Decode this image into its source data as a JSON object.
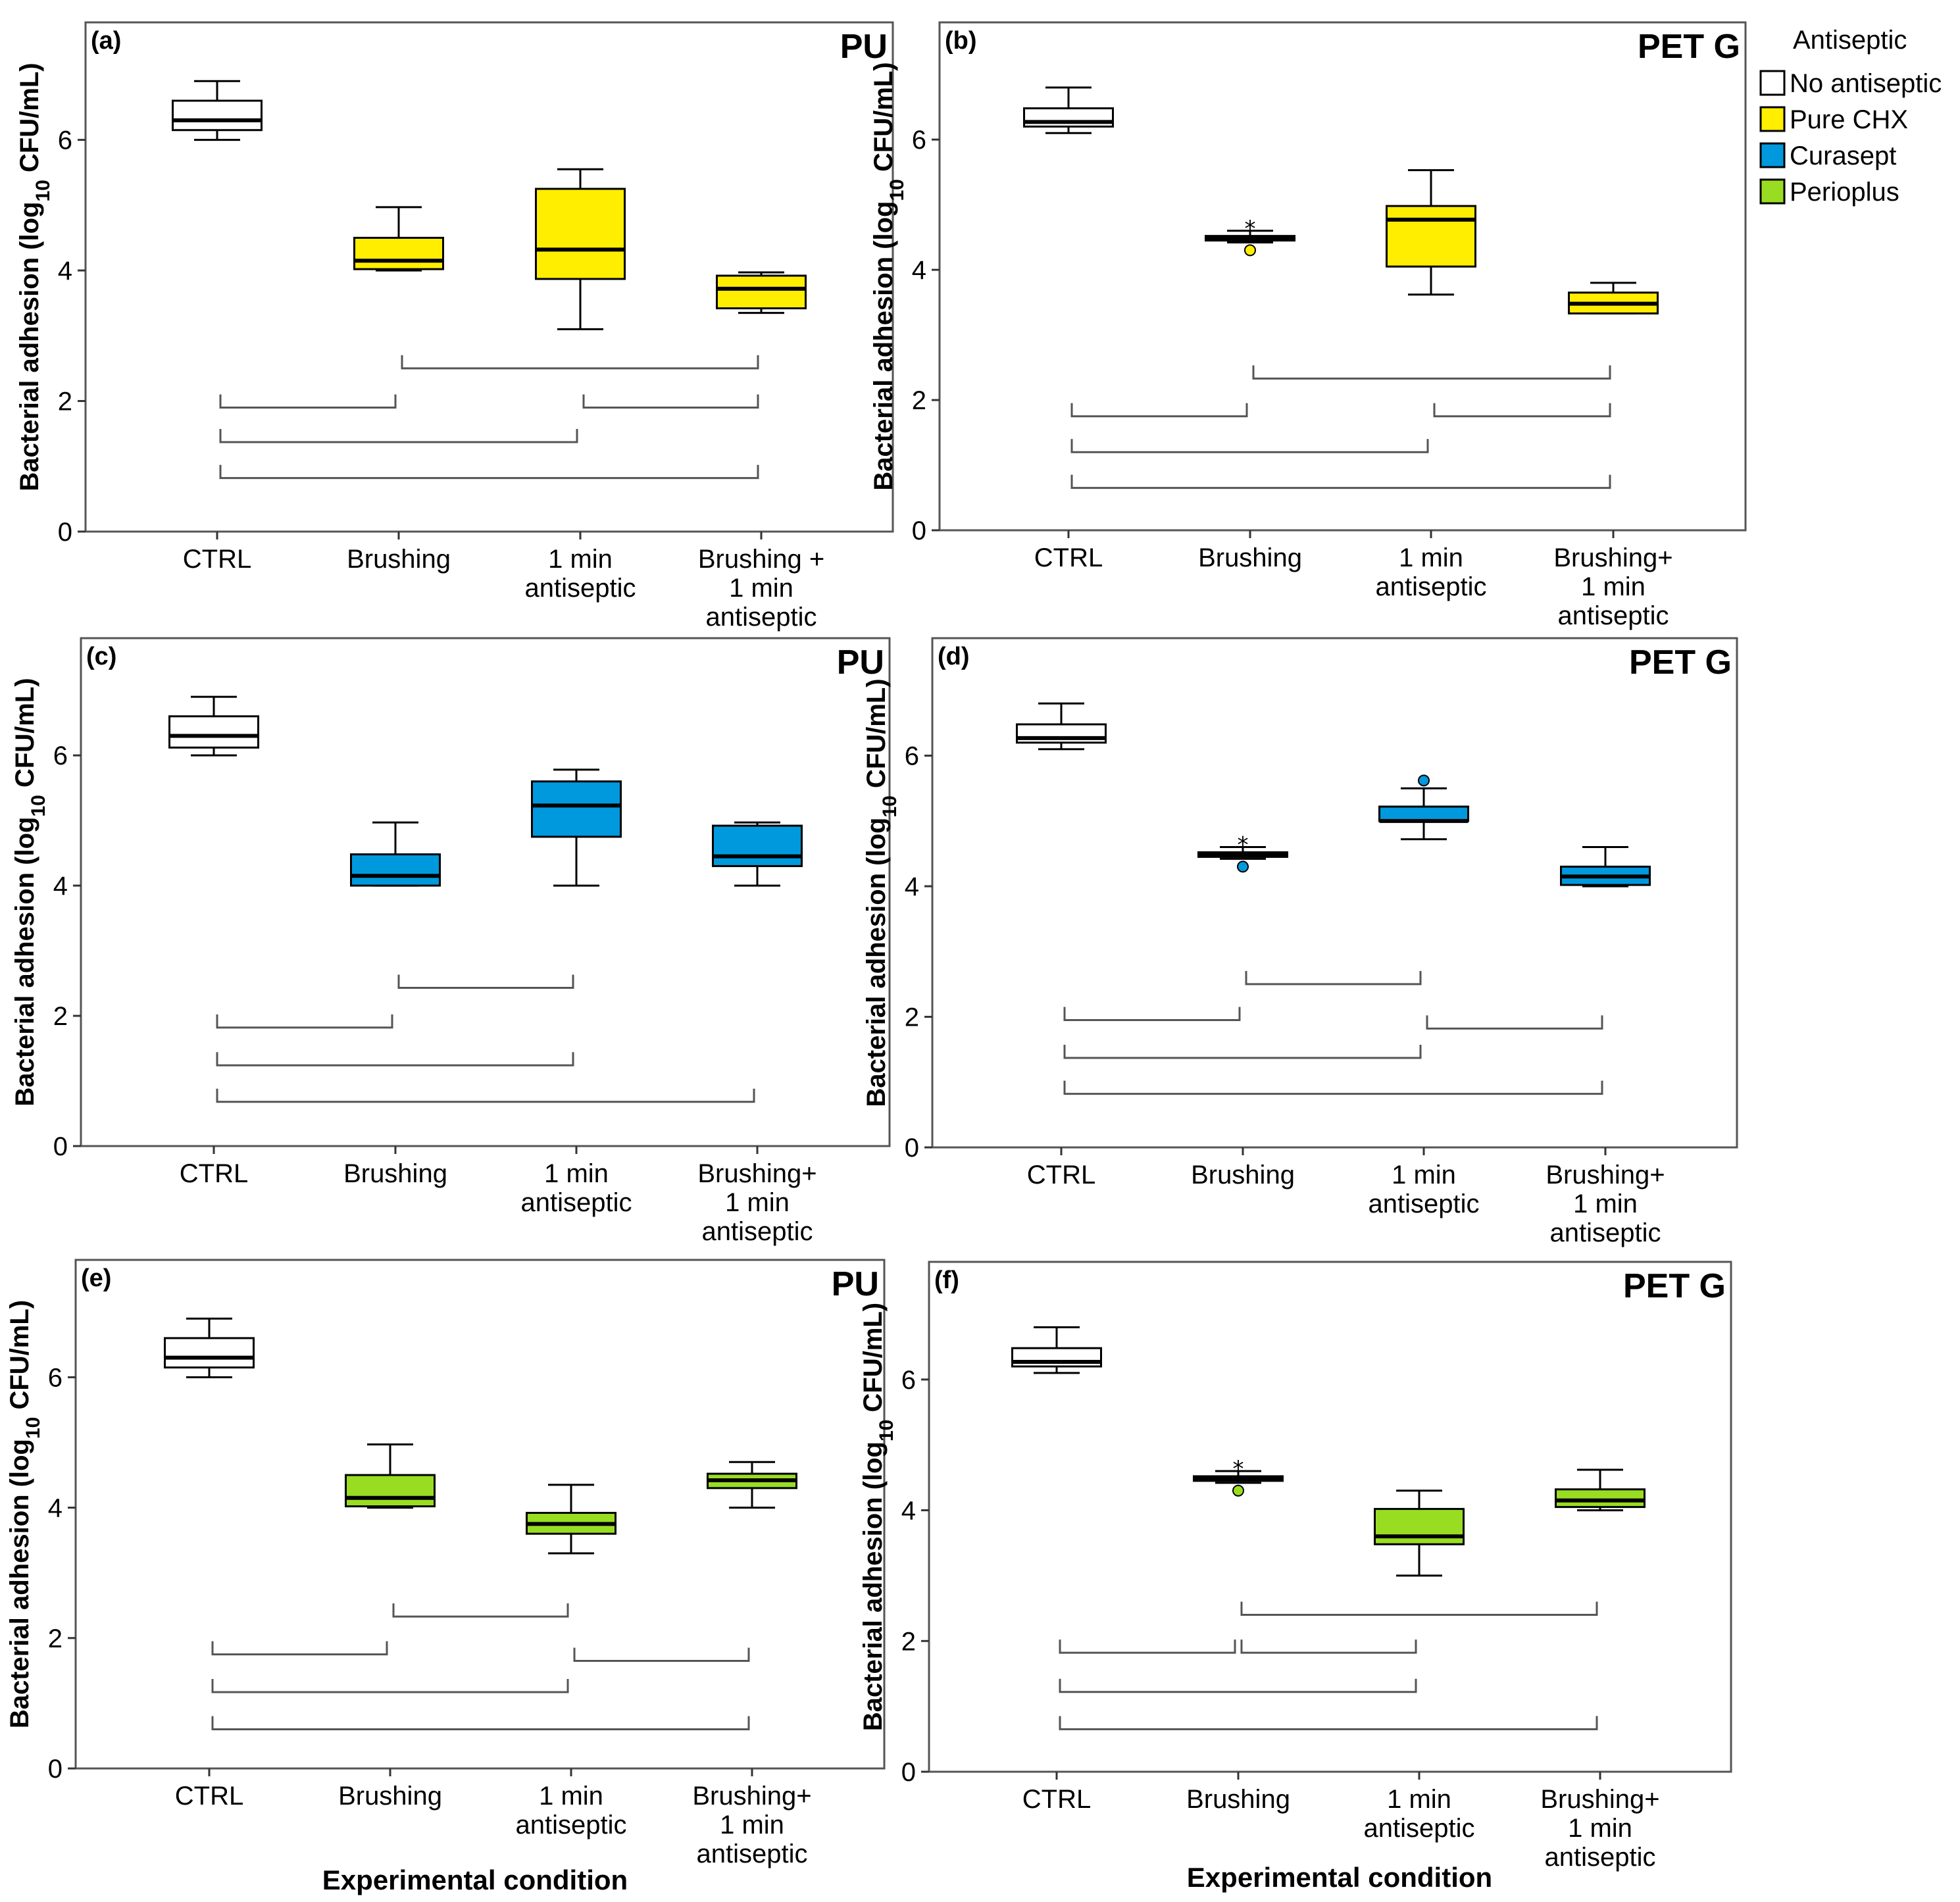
{
  "chart_data": {
    "type": "box",
    "categories": [
      "CTRL",
      "Brushing",
      "1 min\nantiseptic",
      "Brushing +\n1 min\nantiseptic"
    ],
    "categories_alt": [
      "CTRL",
      "Brushing",
      "1 min\nantiseptic",
      "Brushing+\n1 min\nantiseptic"
    ],
    "ylabel": "Bacterial adhesion (log10 CFU/mL)",
    "ylabel_parts": [
      "Bacterial adhesion (log",
      "10",
      " CFU/mL)"
    ],
    "xlabel": "Experimental condition",
    "ylim": [
      0,
      7.8
    ],
    "yticks": [
      0,
      2,
      4,
      6
    ],
    "legend": {
      "title": "Antiseptic",
      "entries": [
        {
          "name": "No antiseptic",
          "color": "#ffffff"
        },
        {
          "name": "Pure CHX",
          "color": "#ffee00"
        },
        {
          "name": "Curasept",
          "color": "#0099dd"
        },
        {
          "name": "Perioplus",
          "color": "#99dd22"
        }
      ]
    },
    "panels": [
      {
        "letter": "(a)",
        "material": "PU",
        "antiseptic_color": "#ffee00",
        "cat_set": "std",
        "boxes": [
          {
            "min": 6.0,
            "q1": 6.15,
            "median": 6.3,
            "q3": 6.6,
            "max": 6.9,
            "color": "#ffffff"
          },
          {
            "min": 4.0,
            "q1": 4.02,
            "median": 4.15,
            "q3": 4.5,
            "max": 4.97,
            "color": "#ffee00"
          },
          {
            "min": 3.1,
            "q1": 3.87,
            "median": 4.32,
            "q3": 5.25,
            "max": 5.55,
            "color": "#ffee00"
          },
          {
            "min": 3.35,
            "q1": 3.42,
            "median": 3.72,
            "q3": 3.92,
            "max": 3.97,
            "color": "#ffee00"
          }
        ],
        "outliers": [],
        "brackets": [
          {
            "from": 1,
            "to": 3,
            "level": 2.5
          },
          {
            "from": 0,
            "to": 1,
            "level": 1.9
          },
          {
            "from": 2,
            "to": 3,
            "level": 1.9
          },
          {
            "from": 0,
            "to": 2,
            "level": 1.37
          },
          {
            "from": 0,
            "to": 3,
            "level": 0.82
          }
        ]
      },
      {
        "letter": "(b)",
        "material": "PET G",
        "antiseptic_color": "#ffee00",
        "cat_set": "alt",
        "boxes": [
          {
            "min": 6.1,
            "q1": 6.2,
            "median": 6.27,
            "q3": 6.48,
            "max": 6.8,
            "color": "#ffffff"
          },
          {
            "min": 4.42,
            "q1": 4.45,
            "median": 4.48,
            "q3": 4.52,
            "max": 4.6,
            "color": "#ffee00"
          },
          {
            "min": 3.62,
            "q1": 4.05,
            "median": 4.77,
            "q3": 4.98,
            "max": 5.53,
            "color": "#ffee00"
          },
          {
            "min": 3.33,
            "q1": 3.33,
            "median": 3.48,
            "q3": 3.65,
            "max": 3.8,
            "color": "#ffee00"
          }
        ],
        "outliers": [
          {
            "box": 1,
            "y": 4.3,
            "type": "circle"
          },
          {
            "box": 1,
            "y": 4.74,
            "type": "star"
          }
        ],
        "brackets": [
          {
            "from": 1,
            "to": 3,
            "level": 2.33
          },
          {
            "from": 0,
            "to": 1,
            "level": 1.75
          },
          {
            "from": 2,
            "to": 3,
            "level": 1.75
          },
          {
            "from": 0,
            "to": 2,
            "level": 1.2
          },
          {
            "from": 0,
            "to": 3,
            "level": 0.65
          }
        ]
      },
      {
        "letter": "(c)",
        "material": "PU",
        "antiseptic_color": "#0099dd",
        "cat_set": "alt",
        "boxes": [
          {
            "min": 6.0,
            "q1": 6.12,
            "median": 6.3,
            "q3": 6.6,
            "max": 6.9,
            "color": "#ffffff"
          },
          {
            "min": 4.0,
            "q1": 4.0,
            "median": 4.15,
            "q3": 4.48,
            "max": 4.97,
            "color": "#0099dd"
          },
          {
            "min": 4.0,
            "q1": 4.75,
            "median": 5.23,
            "q3": 5.6,
            "max": 5.78,
            "color": "#0099dd"
          },
          {
            "min": 4.0,
            "q1": 4.3,
            "median": 4.45,
            "q3": 4.92,
            "max": 4.97,
            "color": "#0099dd"
          }
        ],
        "outliers": [],
        "brackets": [
          {
            "from": 1,
            "to": 2,
            "level": 2.43
          },
          {
            "from": 0,
            "to": 1,
            "level": 1.82
          },
          {
            "from": 0,
            "to": 2,
            "level": 1.24
          },
          {
            "from": 0,
            "to": 3,
            "level": 0.68
          }
        ]
      },
      {
        "letter": "(d)",
        "material": "PET G",
        "antiseptic_color": "#0099dd",
        "cat_set": "alt",
        "boxes": [
          {
            "min": 6.1,
            "q1": 6.2,
            "median": 6.27,
            "q3": 6.48,
            "max": 6.8,
            "color": "#ffffff"
          },
          {
            "min": 4.42,
            "q1": 4.45,
            "median": 4.48,
            "q3": 4.52,
            "max": 4.6,
            "color": "#0099dd"
          },
          {
            "min": 4.72,
            "q1": 5.0,
            "median": 5.0,
            "q3": 5.22,
            "max": 5.5,
            "color": "#0099dd"
          },
          {
            "min": 4.0,
            "q1": 4.02,
            "median": 4.15,
            "q3": 4.3,
            "max": 4.6,
            "color": "#0099dd"
          }
        ],
        "outliers": [
          {
            "box": 1,
            "y": 4.3,
            "type": "circle"
          },
          {
            "box": 1,
            "y": 4.74,
            "type": "star"
          },
          {
            "box": 2,
            "y": 5.62,
            "type": "circle"
          }
        ],
        "brackets": [
          {
            "from": 1,
            "to": 2,
            "level": 2.5
          },
          {
            "from": 0,
            "to": 1,
            "level": 1.95
          },
          {
            "from": 2,
            "to": 3,
            "level": 1.82
          },
          {
            "from": 0,
            "to": 2,
            "level": 1.37
          },
          {
            "from": 0,
            "to": 3,
            "level": 0.82
          }
        ]
      },
      {
        "letter": "(e)",
        "material": "PU",
        "antiseptic_color": "#99dd22",
        "cat_set": "alt",
        "boxes": [
          {
            "min": 6.0,
            "q1": 6.15,
            "median": 6.3,
            "q3": 6.6,
            "max": 6.9,
            "color": "#ffffff"
          },
          {
            "min": 4.0,
            "q1": 4.02,
            "median": 4.15,
            "q3": 4.5,
            "max": 4.97,
            "color": "#99dd22"
          },
          {
            "min": 3.3,
            "q1": 3.6,
            "median": 3.75,
            "q3": 3.92,
            "max": 4.35,
            "color": "#99dd22"
          },
          {
            "min": 4.0,
            "q1": 4.3,
            "median": 4.42,
            "q3": 4.52,
            "max": 4.7,
            "color": "#99dd22"
          }
        ],
        "outliers": [],
        "brackets": [
          {
            "from": 1,
            "to": 2,
            "level": 2.33
          },
          {
            "from": 0,
            "to": 1,
            "level": 1.75
          },
          {
            "from": 2,
            "to": 3,
            "level": 1.65
          },
          {
            "from": 0,
            "to": 2,
            "level": 1.17
          },
          {
            "from": 0,
            "to": 3,
            "level": 0.6
          }
        ]
      },
      {
        "letter": "(f)",
        "material": "PET G",
        "antiseptic_color": "#99dd22",
        "cat_set": "alt",
        "boxes": [
          {
            "min": 6.1,
            "q1": 6.2,
            "median": 6.27,
            "q3": 6.48,
            "max": 6.8,
            "color": "#ffffff"
          },
          {
            "min": 4.42,
            "q1": 4.45,
            "median": 4.48,
            "q3": 4.52,
            "max": 4.6,
            "color": "#99dd22"
          },
          {
            "min": 3.0,
            "q1": 3.48,
            "median": 3.6,
            "q3": 4.02,
            "max": 4.3,
            "color": "#99dd22"
          },
          {
            "min": 4.0,
            "q1": 4.05,
            "median": 4.15,
            "q3": 4.32,
            "max": 4.62,
            "color": "#99dd22"
          }
        ],
        "outliers": [
          {
            "box": 1,
            "y": 4.3,
            "type": "circle"
          },
          {
            "box": 1,
            "y": 4.74,
            "type": "star"
          }
        ],
        "brackets": [
          {
            "from": 1,
            "to": 3,
            "level": 2.4
          },
          {
            "from": 0,
            "to": 1,
            "level": 1.82
          },
          {
            "from": 1,
            "to": 2,
            "level": 1.82
          },
          {
            "from": 0,
            "to": 2,
            "level": 1.22
          },
          {
            "from": 0,
            "to": 3,
            "level": 0.65
          }
        ]
      }
    ]
  }
}
